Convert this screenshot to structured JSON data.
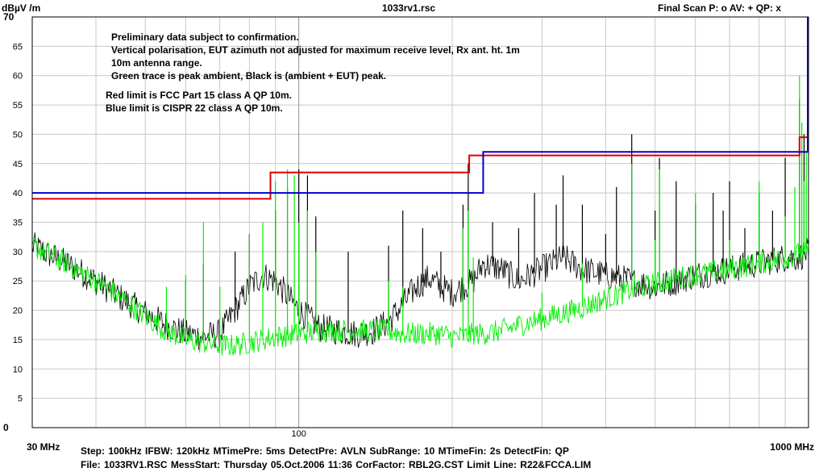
{
  "header": {
    "unit": "dBµV /m",
    "file_title": "1033rv1.rsc",
    "scan_label": "Final Scan P: o  AV: +  QP: x"
  },
  "annotations": [
    "Preliminary data subject to confirmation.",
    "Vertical polarisation, EUT azimuth not adjusted for maximum receive level, Rx ant. ht. 1m",
    "10m antenna range.",
    "Green trace is peak ambient, Black is (ambient + EUT) peak.",
    "Red limit is FCC Part 15 class A QP 10m.",
    "Blue limit is CISPR 22 class A QP 10m."
  ],
  "footer": {
    "line1": "Step: 100kHz   IFBW: 120kHz   MTimePre:  5ms   DetectPre: AVLN    SubRange: 10   MTimeFin:   2s    DetectFin: QP",
    "line2": "File: 1033RV1.RSC    MessStart: Thursday  05.Oct.2006   11:36    CorFactor: RBL2G.CST    Limit Line: R22&FCCA.LIM"
  },
  "colors": {
    "black_trace": "#000000",
    "green_trace": "#00ee00",
    "red_limit": "#dd0000",
    "blue_limit": "#0000cc",
    "grid": "#c8c8c8"
  },
  "chart_data": {
    "type": "line",
    "x_scale": "log",
    "xlim": [
      30,
      1000
    ],
    "ylim": [
      0,
      70
    ],
    "y_ticks": [
      0,
      5,
      10,
      15,
      20,
      25,
      30,
      35,
      40,
      45,
      50,
      55,
      60,
      65,
      70
    ],
    "x_tick_labels": [
      {
        "value": 30,
        "label": "30 MHz"
      },
      {
        "value": 100,
        "label": "100"
      },
      {
        "value": 1000,
        "label": "1000 MHz"
      }
    ],
    "grid": true,
    "limits": [
      {
        "name": "FCC Part 15 class A QP 10m",
        "color": "#dd0000",
        "x": [
          30,
          88,
          88,
          216,
          216,
          960,
          960,
          1000
        ],
        "y": [
          39,
          39,
          43.5,
          43.5,
          46.4,
          46.4,
          49.5,
          49.5
        ]
      },
      {
        "name": "CISPR 22 class A QP 10m",
        "color": "#0000cc",
        "x": [
          30,
          230,
          230,
          1000
        ],
        "y": [
          40,
          40,
          47,
          47
        ]
      }
    ],
    "series": [
      {
        "name": "ambient + EUT peak",
        "color": "#000000",
        "x": [
          30,
          35,
          40,
          45,
          50,
          55,
          60,
          65,
          70,
          75,
          80,
          85,
          90,
          100,
          110,
          120,
          130,
          140,
          150,
          160,
          170,
          180,
          190,
          200,
          210,
          220,
          230,
          250,
          270,
          300,
          330,
          360,
          400,
          450,
          500,
          550,
          600,
          700,
          800,
          900,
          950,
          1000
        ],
        "y": [
          31,
          28,
          25,
          22,
          19.5,
          17.5,
          16,
          15.5,
          16,
          20,
          24,
          26,
          25,
          20,
          17,
          16.5,
          16,
          16.5,
          18,
          21,
          24,
          25.5,
          24,
          23,
          24,
          25,
          28,
          27,
          25,
          27,
          29,
          27,
          26,
          25,
          24,
          25,
          26,
          27,
          28,
          29,
          29,
          30
        ]
      },
      {
        "name": "ambient peak",
        "color": "#00ee00",
        "x": [
          30,
          35,
          40,
          45,
          50,
          55,
          60,
          65,
          70,
          75,
          80,
          85,
          90,
          100,
          110,
          120,
          130,
          140,
          150,
          160,
          170,
          180,
          190,
          200,
          210,
          220,
          230,
          250,
          270,
          300,
          330,
          360,
          400,
          450,
          500,
          550,
          600,
          700,
          800,
          900,
          950,
          1000
        ],
        "y": [
          31,
          28,
          25,
          22,
          19,
          16.5,
          15,
          14.5,
          14,
          14,
          14.5,
          15,
          15.5,
          16,
          16.5,
          16.5,
          16.5,
          16.5,
          16.5,
          16,
          16,
          16,
          16,
          15.5,
          15.5,
          16,
          16,
          16.5,
          17.5,
          18.5,
          19.5,
          20.5,
          22,
          23.5,
          24.5,
          25.5,
          26,
          27,
          28,
          29,
          29.5,
          30
        ]
      }
    ],
    "spikes": [
      {
        "series": "ambient + EUT peak",
        "x": [
          60,
          65,
          75,
          80,
          90,
          95,
          100,
          104,
          108,
          125,
          150,
          160,
          175,
          190,
          210,
          215,
          240,
          270,
          290,
          320,
          330,
          360,
          400,
          420,
          450,
          500,
          510,
          550,
          600,
          650,
          680,
          700,
          750,
          800,
          850,
          900,
          960,
          980
        ],
        "y": [
          25,
          28,
          30,
          33,
          37,
          41,
          44,
          43,
          36,
          30,
          31,
          37,
          34,
          30,
          38,
          45,
          35,
          34,
          40,
          38,
          43,
          38,
          33,
          41,
          50,
          37,
          46,
          42,
          38,
          40,
          37,
          42,
          34,
          40,
          37,
          46,
          56,
          50
        ]
      },
      {
        "series": "ambient peak",
        "x": [
          55,
          60,
          65,
          70,
          80,
          85,
          90,
          95,
          98,
          100,
          104,
          108,
          150,
          160,
          210,
          215,
          220,
          300,
          360,
          450,
          500,
          510,
          600,
          700,
          800,
          900,
          940,
          960,
          970,
          980,
          990
        ],
        "y": [
          24,
          26,
          35,
          24,
          33,
          35,
          42,
          44,
          43,
          35,
          37,
          30,
          25,
          24,
          34,
          37,
          29,
          23,
          28,
          45,
          32,
          44,
          40,
          32,
          42,
          36,
          41,
          60,
          52,
          42,
          47
        ]
      }
    ]
  }
}
